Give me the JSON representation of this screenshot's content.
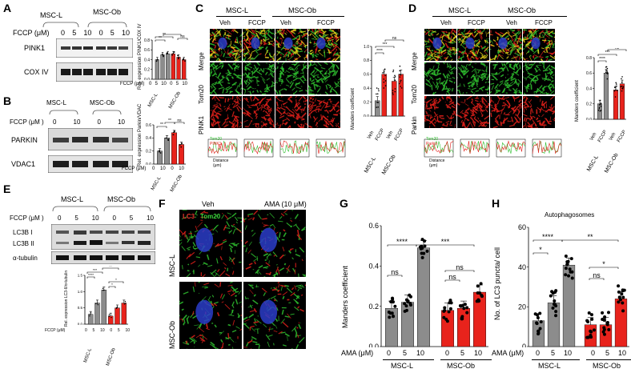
{
  "panels": {
    "A": {
      "label": "A",
      "groups": [
        "MSC-L",
        "MSC-Ob"
      ],
      "fccp_label": "FCCP (μM)",
      "fccp_doses": [
        "0",
        "5",
        "10",
        "0",
        "5",
        "10"
      ],
      "blots": [
        "PINK1",
        "COX IV"
      ],
      "chart_ylabel": "Rel. expression PINK1/COX IV",
      "chart_xlabel": "FCCP (μM)",
      "chart_xdoses": [
        "0",
        "5",
        "10",
        "0",
        "5",
        "10"
      ],
      "chart_groups": [
        "MSC-L",
        "MSC-Ob"
      ],
      "sig": [
        "**",
        "**",
        "**",
        "ns"
      ]
    },
    "B": {
      "label": "B",
      "groups": [
        "MSC-L",
        "MSC-Ob"
      ],
      "fccp_label": "FCCP (μM )",
      "fccp_doses": [
        "0",
        "10",
        "0",
        "10"
      ],
      "blots": [
        "PARKIN",
        "VDAC1"
      ],
      "chart_ylabel": "Rel. expression Parkin/VDAC",
      "chart_xlabel": "FCCP (μM)",
      "chart_xdoses": [
        "0",
        "10",
        "0",
        "10"
      ],
      "chart_groups": [
        "MSC-L",
        "MSC-Ob"
      ],
      "sig": [
        "**",
        "**",
        "ns"
      ]
    },
    "C": {
      "label": "C",
      "groups": [
        "MSC-L",
        "MSC-Ob"
      ],
      "conditions": [
        "Veh",
        "FCCP",
        "Veh",
        "FCCP"
      ],
      "rows": [
        "Merge",
        "Tom20",
        "PINK1"
      ],
      "profile_legend": [
        "Tom20",
        "PINK1"
      ],
      "profile_ylabel": "Intensity (au)",
      "profile_xlabel": "Distance (μm)",
      "chart_ylabel": "Manders coefficient",
      "chart_bars": [
        "Veh",
        "FCCP",
        "Veh",
        "FCCP"
      ],
      "chart_groups": [
        "MSC-L",
        "MSC-Ob"
      ],
      "sig": [
        "****",
        "***",
        "ns"
      ]
    },
    "D": {
      "label": "D",
      "groups": [
        "MSC-L",
        "MSC-Ob"
      ],
      "conditions": [
        "Veh",
        "FCCP",
        "Veh",
        "FCCP"
      ],
      "rows": [
        "Merge",
        "Tom20",
        "Parkin"
      ],
      "profile_legend": [
        "Tom20",
        "Parkin"
      ],
      "profile_ylabel": "Intensity (au)",
      "profile_xlabel": "Distance (μm)",
      "chart_ylabel": "Manders coefficient",
      "chart_bars": [
        "Veh",
        "FCCP",
        "Veh",
        "FCCP"
      ],
      "chart_groups": [
        "MSC-L",
        "MSC-Ob"
      ],
      "sig": [
        "****",
        "***",
        "ns"
      ]
    },
    "E": {
      "label": "E",
      "groups": [
        "MSC-L",
        "MSC-Ob"
      ],
      "fccp_label": "FCCP (μM )",
      "fccp_doses": [
        "0",
        "5",
        "10",
        "0",
        "5",
        "10"
      ],
      "blots": [
        "LC3B I",
        "LC3B II",
        "α-tubulin"
      ],
      "chart_ylabel": "Rel. expression LC3-II/α-tubulin",
      "chart_xlabel": "FCCP (μM)",
      "chart_xdoses": [
        "0",
        "5",
        "10",
        "0",
        "5",
        "10"
      ],
      "chart_groups": [
        "MSC-L",
        "MSC-Ob"
      ],
      "sig": [
        "****",
        "***",
        "*",
        "*",
        "**"
      ]
    },
    "F": {
      "label": "F",
      "conditions": [
        "Veh",
        "AMA (10 μM)"
      ],
      "rows": [
        "MSC-L",
        "MSC-Ob"
      ],
      "stain_lc3": "LC3",
      "stain_tom20": "Tom20"
    },
    "G": {
      "label": "G",
      "ylabel": "Manders coefficient",
      "xlabel": "AMA (μM)",
      "doses": [
        "0",
        "5",
        "10",
        "0",
        "5",
        "10"
      ],
      "groups": [
        "MSC-L",
        "MSC-Ob"
      ],
      "sig": [
        "ns",
        "****",
        "***",
        "ns",
        "ns"
      ]
    },
    "H": {
      "label": "H",
      "title": "Autophagosomes",
      "ylabel": "No. of LC3 puncta/ cell",
      "xlabel": "AMA (μM)",
      "doses": [
        "0",
        "5",
        "10",
        "0",
        "5",
        "10"
      ],
      "groups": [
        "MSC-L",
        "MSC-Ob"
      ],
      "sig": [
        "*",
        "****",
        "**",
        "ns",
        "*"
      ]
    }
  },
  "colors": {
    "gray_bar": "#8c8c8c",
    "red_bar": "#e8231c",
    "green": "#2fbf2f",
    "red": "#e0201a",
    "blue": "#2a3cc8",
    "yellow": "#e8d41a"
  },
  "chart_data": [
    {
      "type": "bar",
      "panel": "A",
      "categories": [
        "MSC-L 0",
        "MSC-L 5",
        "MSC-L 10",
        "MSC-Ob 0",
        "MSC-Ob 5",
        "MSC-Ob 10"
      ],
      "values": [
        0.4,
        0.5,
        0.52,
        0.52,
        0.45,
        0.4
      ],
      "colors": [
        "gray",
        "gray",
        "gray",
        "red",
        "red",
        "red"
      ],
      "ylim": [
        0,
        0.8
      ],
      "yticks": [
        "0.0",
        "0.2",
        "0.4",
        "0.6",
        "0.8"
      ]
    },
    {
      "type": "bar",
      "panel": "B",
      "categories": [
        "MSC-L 0",
        "MSC-L 10",
        "MSC-Ob 0",
        "MSC-Ob 10"
      ],
      "values": [
        0.2,
        0.4,
        0.48,
        0.3
      ],
      "colors": [
        "gray",
        "gray",
        "red",
        "red"
      ],
      "ylim": [
        0,
        0.6
      ],
      "yticks": [
        "0.0",
        "0.2",
        "0.4",
        "0.6"
      ]
    },
    {
      "type": "bar",
      "panel": "C",
      "categories": [
        "MSC-L Veh",
        "MSC-L FCCP",
        "MSC-Ob Veh",
        "MSC-Ob FCCP"
      ],
      "values": [
        0.22,
        0.6,
        0.5,
        0.6
      ],
      "colors": [
        "gray",
        "red",
        "red",
        "red"
      ],
      "ylim": [
        0,
        1.0
      ],
      "yticks": [
        "0.0",
        "0.2",
        "0.4",
        "0.6",
        "0.8",
        "1.0"
      ]
    },
    {
      "type": "bar",
      "panel": "D",
      "categories": [
        "MSC-L Veh",
        "MSC-L FCCP",
        "MSC-Ob Veh",
        "MSC-Ob FCCP"
      ],
      "values": [
        0.2,
        0.6,
        0.38,
        0.46
      ],
      "colors": [
        "gray",
        "gray",
        "red",
        "red"
      ],
      "ylim": [
        0,
        0.8
      ],
      "yticks": [
        "0.0",
        "0.2",
        "0.4",
        "0.6",
        "0.8"
      ]
    },
    {
      "type": "bar",
      "panel": "E",
      "categories": [
        "MSC-L 0",
        "MSC-L 5",
        "MSC-L 10",
        "MSC-Ob 0",
        "MSC-Ob 5",
        "MSC-Ob 10"
      ],
      "values": [
        0.3,
        0.65,
        1.05,
        0.25,
        0.5,
        0.65
      ],
      "colors": [
        "gray",
        "gray",
        "gray",
        "red",
        "red",
        "red"
      ],
      "ylim": [
        0,
        1.5
      ],
      "yticks": [
        "0.0",
        "0.5",
        "1.0",
        "1.5"
      ]
    },
    {
      "type": "bar",
      "panel": "G",
      "categories": [
        "MSC-L 0",
        "MSC-L 5",
        "MSC-L 10",
        "MSC-Ob 0",
        "MSC-Ob 5",
        "MSC-Ob 10"
      ],
      "values": [
        0.19,
        0.22,
        0.49,
        0.18,
        0.19,
        0.27
      ],
      "colors": [
        "gray",
        "gray",
        "gray",
        "red",
        "red",
        "red"
      ],
      "ylim": [
        0,
        0.6
      ],
      "yticks": [
        "0.0",
        "0.2",
        "0.4",
        "0.6"
      ]
    },
    {
      "type": "bar",
      "panel": "H",
      "categories": [
        "MSC-L 0",
        "MSC-L 5",
        "MSC-L 10",
        "MSC-Ob 0",
        "MSC-Ob 5",
        "MSC-Ob 10"
      ],
      "values": [
        13,
        22,
        41,
        11,
        11,
        24
      ],
      "colors": [
        "gray",
        "gray",
        "gray",
        "red",
        "red",
        "red"
      ],
      "ylim": [
        0,
        60
      ],
      "yticks": [
        "0",
        "20",
        "40",
        "60"
      ]
    }
  ]
}
